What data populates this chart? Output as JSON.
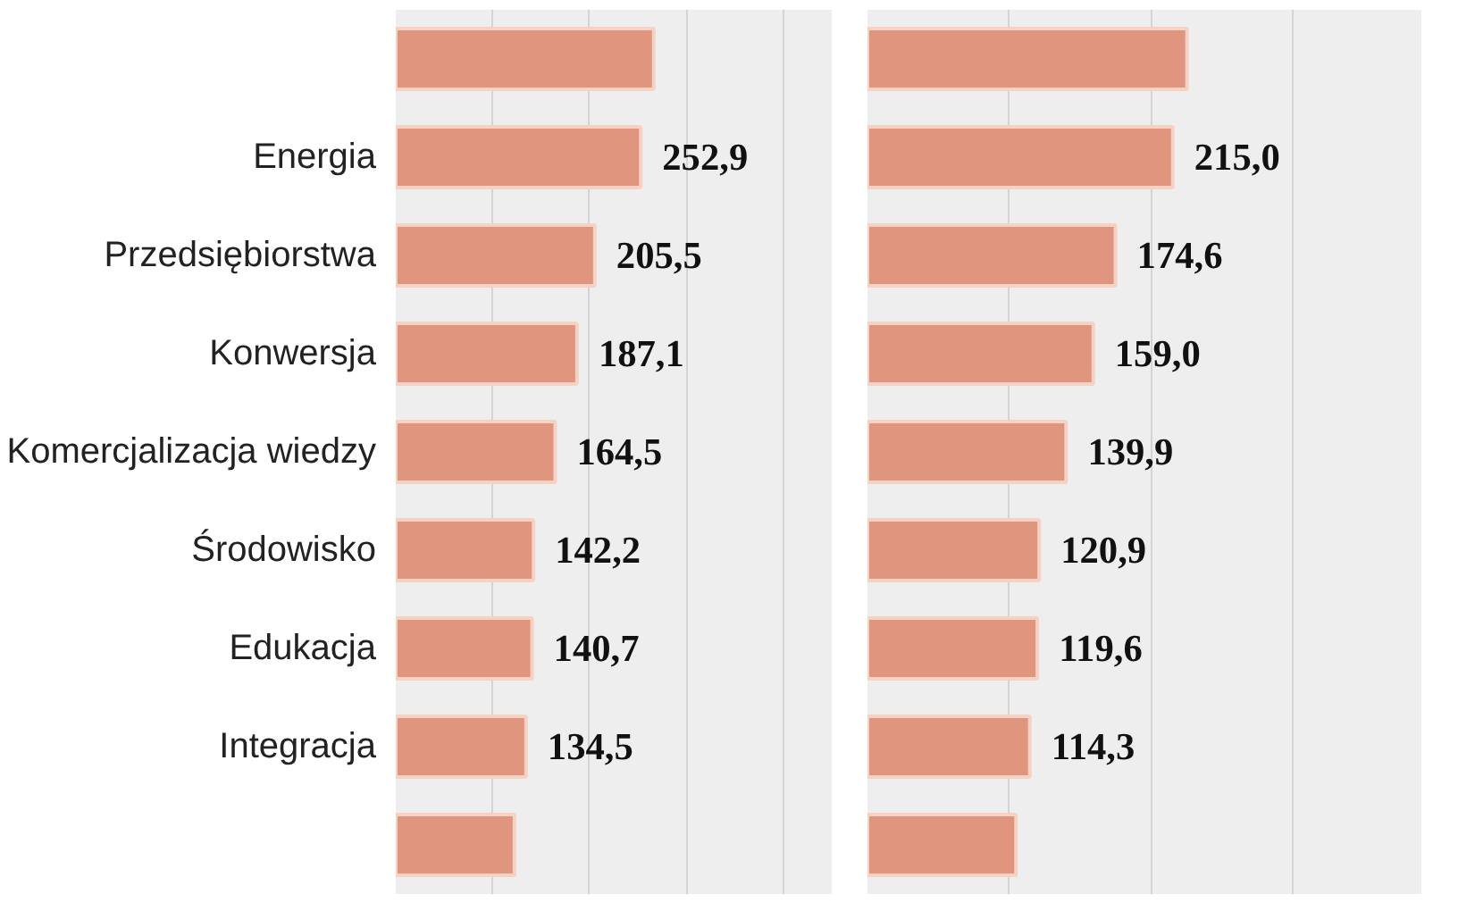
{
  "chart_data": [
    {
      "type": "bar",
      "orientation": "horizontal",
      "categories": [
        null,
        "Energia",
        "Przedsiębiorstwa",
        "Konwersja",
        "Komercjalizacja wiedzy",
        "Środowisko",
        "Edukacja",
        "Integracja",
        null
      ],
      "values": [
        266.3,
        252.9,
        205.5,
        187.1,
        164.5,
        142.2,
        140.7,
        134.5,
        122.5
      ],
      "value_labels": [
        null,
        "252,9",
        "205,5",
        "187,1",
        "164,5",
        "142,2",
        "140,7",
        "134,5",
        null
      ],
      "color": "#e0957f",
      "xlim": [
        0,
        450
      ],
      "xticks": [
        {
          "value": 100,
          "label": null
        },
        {
          "value": 200,
          "label": null
        },
        {
          "value": 300,
          "label": null
        },
        {
          "value": 400,
          "label": null
        }
      ],
      "grid": "x",
      "tick_labels": "y"
    },
    {
      "type": "bar",
      "orientation": "horizontal",
      "categories": [
        null,
        null,
        null,
        null,
        null,
        null,
        null,
        null,
        null
      ],
      "values": [
        225.0,
        215.0,
        174.6,
        159.0,
        139.9,
        120.9,
        119.6,
        114.3,
        104.6
      ],
      "value_labels": [
        null,
        "215,0",
        "174,6",
        "159,0",
        "139,9",
        "120,9",
        "119,6",
        "114,3",
        null
      ],
      "color": "#e0957f",
      "xlim": [
        0,
        390
      ],
      "xticks": [
        {
          "value": 100,
          "label": null
        },
        {
          "value": 200,
          "label": null
        },
        {
          "value": 300,
          "label": null
        }
      ],
      "grid": "x",
      "tick_labels": false
    }
  ]
}
